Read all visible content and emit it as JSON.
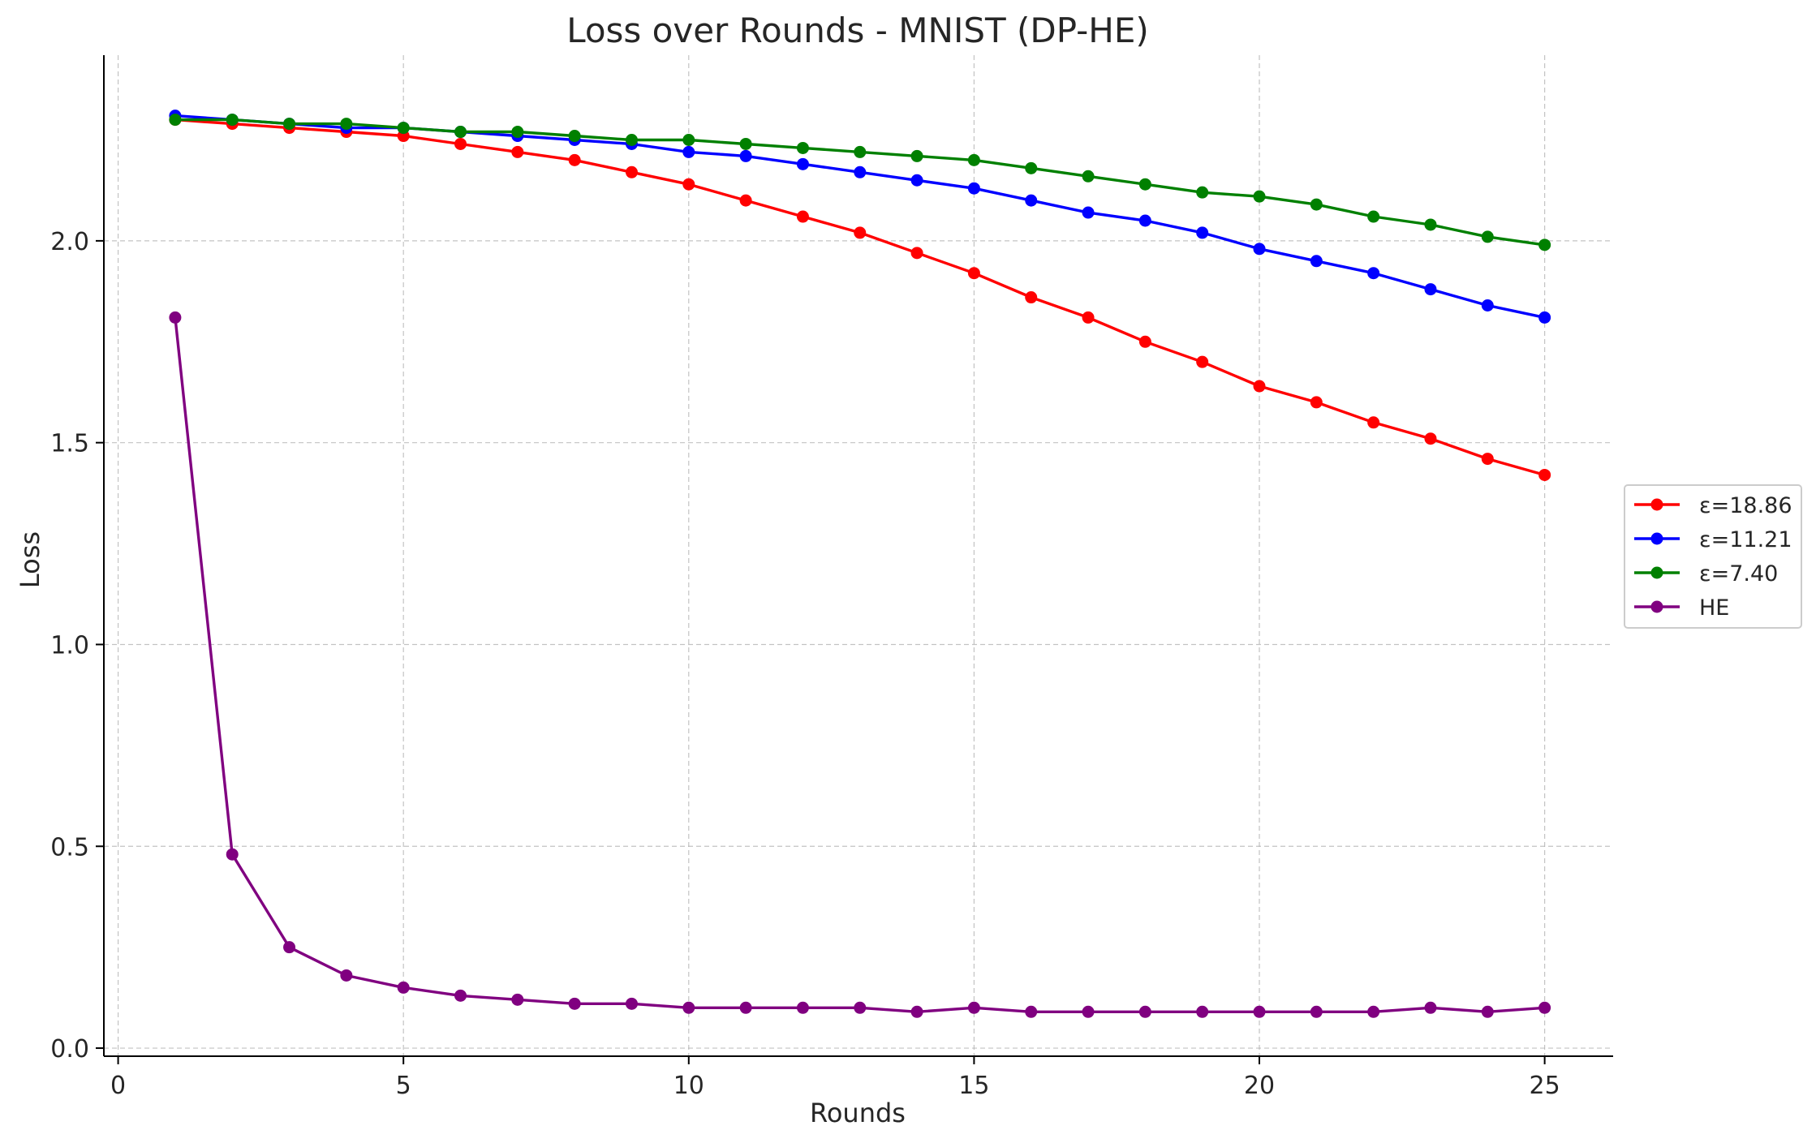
{
  "chart_data": {
    "type": "line",
    "title": "Loss over Rounds - MNIST (DP-HE)",
    "xlabel": "Rounds",
    "ylabel": "Loss",
    "xlim": [
      -0.25,
      26.2
    ],
    "ylim": [
      -0.02,
      2.46
    ],
    "xticks": [
      0,
      5,
      10,
      15,
      20,
      25
    ],
    "xtick_labels": [
      "0",
      "5",
      "10",
      "15",
      "20",
      "25"
    ],
    "yticks": [
      0.0,
      0.5,
      1.0,
      1.5,
      2.0
    ],
    "ytick_labels": [
      "0.0",
      "0.5",
      "1.0",
      "1.5",
      "2.0"
    ],
    "grid": true,
    "legend_placement": "center-right-outside",
    "x": [
      1,
      2,
      3,
      4,
      5,
      6,
      7,
      8,
      9,
      10,
      11,
      12,
      13,
      14,
      15,
      16,
      17,
      18,
      19,
      20,
      21,
      22,
      23,
      24,
      25
    ],
    "series": [
      {
        "name": "ε=18.86",
        "color": "#ff0000",
        "values": [
          2.3,
          2.29,
          2.28,
          2.27,
          2.26,
          2.24,
          2.22,
          2.2,
          2.17,
          2.14,
          2.1,
          2.06,
          2.02,
          1.97,
          1.92,
          1.86,
          1.81,
          1.75,
          1.7,
          1.64,
          1.6,
          1.55,
          1.51,
          1.46,
          1.42
        ]
      },
      {
        "name": "ε=11.21",
        "color": "#0000ff",
        "values": [
          2.31,
          2.3,
          2.29,
          2.28,
          2.28,
          2.27,
          2.26,
          2.25,
          2.24,
          2.22,
          2.21,
          2.19,
          2.17,
          2.15,
          2.13,
          2.1,
          2.07,
          2.05,
          2.02,
          1.98,
          1.95,
          1.92,
          1.88,
          1.84,
          1.81
        ]
      },
      {
        "name": "ε=7.40",
        "color": "#008000",
        "values": [
          2.3,
          2.3,
          2.29,
          2.29,
          2.28,
          2.27,
          2.27,
          2.26,
          2.25,
          2.25,
          2.24,
          2.23,
          2.22,
          2.21,
          2.2,
          2.18,
          2.16,
          2.14,
          2.12,
          2.11,
          2.09,
          2.06,
          2.04,
          2.01,
          1.99
        ]
      },
      {
        "name": "HE",
        "color": "#800080",
        "values": [
          1.81,
          0.48,
          0.25,
          0.18,
          0.15,
          0.13,
          0.12,
          0.11,
          0.11,
          0.1,
          0.1,
          0.1,
          0.1,
          0.09,
          0.1,
          0.09,
          0.09,
          0.09,
          0.09,
          0.09,
          0.09,
          0.09,
          0.1,
          0.09,
          0.1
        ]
      }
    ]
  }
}
